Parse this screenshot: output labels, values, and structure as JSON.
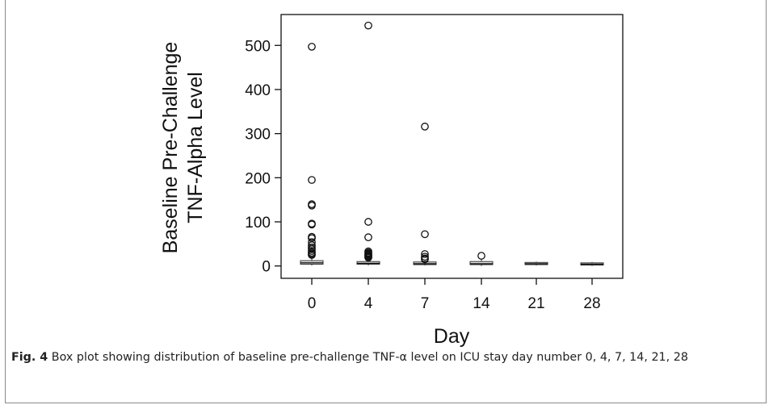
{
  "chart_data": {
    "type": "boxplot",
    "xlabel": "Day",
    "ylabel_line1": "Baseline Pre-Challenge",
    "ylabel_line2": "TNF-Alpha Level",
    "categories": [
      "0",
      "4",
      "7",
      "14",
      "21",
      "28"
    ],
    "ylim": [
      -28,
      570
    ],
    "yticks": [
      0,
      100,
      200,
      300,
      400,
      500
    ],
    "ytick_labels": [
      "0",
      "100",
      "200",
      "300",
      "400",
      "500"
    ],
    "grid": false,
    "boxes": [
      {
        "category": "0",
        "min": 1,
        "q1": 4,
        "median": 7,
        "q3": 12,
        "max": 22,
        "outliers": [
          497,
          195,
          140,
          137,
          96,
          94,
          66,
          63,
          54,
          47,
          42,
          38,
          34,
          30,
          27,
          25
        ]
      },
      {
        "category": "4",
        "min": 1,
        "q1": 4,
        "median": 6,
        "q3": 10,
        "max": 17,
        "outliers": [
          545,
          100,
          65,
          33,
          30,
          28,
          26,
          24,
          22,
          20,
          19
        ]
      },
      {
        "category": "7",
        "min": 1,
        "q1": 3,
        "median": 5,
        "q3": 9,
        "max": 13,
        "outliers": [
          316,
          72,
          27,
          21,
          17,
          15
        ]
      },
      {
        "category": "14",
        "min": 0,
        "q1": 3,
        "median": 5,
        "q3": 10,
        "max": 14,
        "outliers": [
          23
        ]
      },
      {
        "category": "21",
        "min": 1,
        "q1": 3,
        "median": 5,
        "q3": 8,
        "max": 10,
        "outliers": []
      },
      {
        "category": "28",
        "min": 0,
        "q1": 2,
        "median": 4,
        "q3": 7,
        "max": 9,
        "outliers": []
      }
    ]
  },
  "caption": {
    "label": "Fig. 4",
    "text": " Box plot showing distribution of baseline pre-challenge TNF-α level on ICU stay day number 0, 4, 7, 14, 21, 28"
  }
}
